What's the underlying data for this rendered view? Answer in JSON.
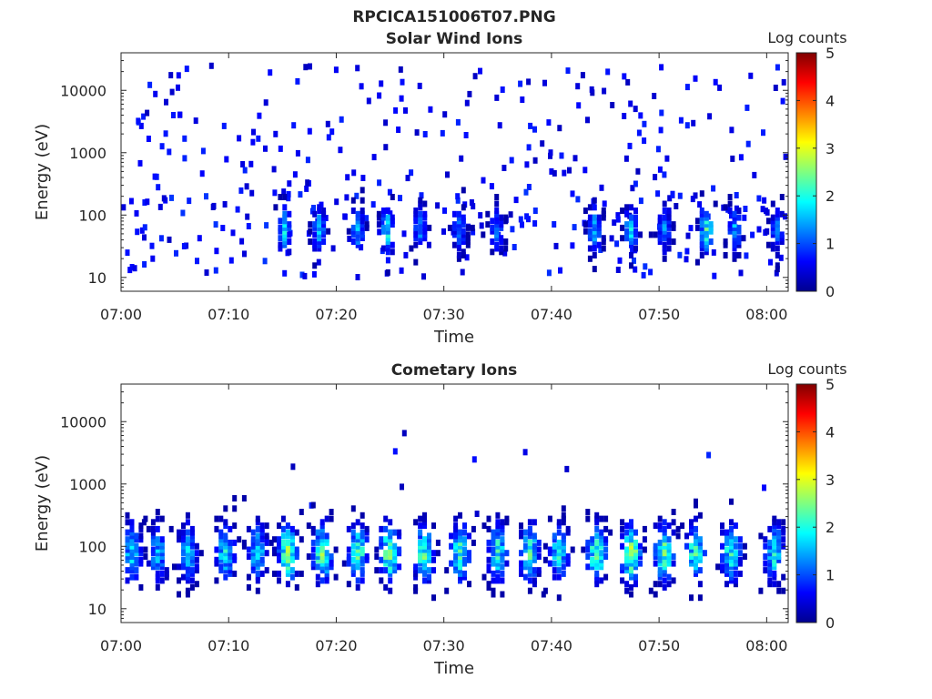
{
  "figure_title": "RPCICA151006T07.PNG",
  "chart_data": [
    {
      "type": "heatmap",
      "title": "Solar Wind Ions",
      "xlabel": "Time",
      "ylabel": "Energy (eV)",
      "xticks": [
        "07:00",
        "07:10",
        "07:20",
        "07:30",
        "07:40",
        "07:50",
        "08:00"
      ],
      "yticks": [
        "10",
        "100",
        "1000",
        "10000"
      ],
      "yscale": "log",
      "xlim": [
        "07:00",
        "08:02"
      ],
      "ylim": [
        6,
        40000
      ],
      "colorbar": {
        "label": "Log counts",
        "ticks": [
          "0",
          "1",
          "2",
          "3",
          "4",
          "5"
        ],
        "range": [
          0,
          5
        ],
        "colormap": "jet"
      },
      "background_hits": {
        "minute_range": [
          0,
          62
        ],
        "energy_range": [
          40,
          25000
        ],
        "level": 0.3,
        "count": 230,
        "seed": 11
      },
      "low_energy_hits": {
        "minute_range": [
          0,
          62
        ],
        "energy_range": [
          10,
          250
        ],
        "level": 0.4,
        "count": 160,
        "seed": 29
      },
      "bursts": [
        {
          "minute": 15.0,
          "peak": 1.8
        },
        {
          "minute": 18.2,
          "peak": 1.6
        },
        {
          "minute": 21.8,
          "peak": 1.6
        },
        {
          "minute": 24.6,
          "peak": 2.0
        },
        {
          "minute": 27.6,
          "peak": 1.5
        },
        {
          "minute": 31.2,
          "peak": 1.3
        },
        {
          "minute": 34.7,
          "peak": 1.3
        },
        {
          "minute": 43.8,
          "peak": 1.6
        },
        {
          "minute": 47.2,
          "peak": 1.8
        },
        {
          "minute": 50.3,
          "peak": 1.4
        },
        {
          "minute": 54.2,
          "peak": 2.2
        },
        {
          "minute": 56.8,
          "peak": 1.6
        },
        {
          "minute": 60.8,
          "peak": 1.3
        }
      ]
    },
    {
      "type": "heatmap",
      "title": "Cometary Ions",
      "xlabel": "Time",
      "ylabel": "Energy (eV)",
      "xticks": [
        "07:00",
        "07:10",
        "07:20",
        "07:30",
        "07:40",
        "07:50",
        "08:00"
      ],
      "yticks": [
        "10",
        "100",
        "1000",
        "10000"
      ],
      "yscale": "log",
      "xlim": [
        "07:00",
        "08:02"
      ],
      "ylim": [
        6,
        40000
      ],
      "colorbar": {
        "label": "Log counts",
        "ticks": [
          "0",
          "1",
          "2",
          "3",
          "4",
          "5"
        ],
        "range": [
          0,
          5
        ],
        "colormap": "jet"
      },
      "background_hits": {
        "minute_range": [
          0,
          62
        ],
        "energy_range": [
          300,
          9000
        ],
        "level": 0.3,
        "count": 12,
        "seed": 47
      },
      "bursts": [
        {
          "minute": 0.8,
          "peak": 1.9
        },
        {
          "minute": 3.2,
          "peak": 1.7
        },
        {
          "minute": 6.0,
          "peak": 1.8
        },
        {
          "minute": 9.5,
          "peak": 2.0
        },
        {
          "minute": 12.5,
          "peak": 1.9
        },
        {
          "minute": 15.3,
          "peak": 2.8
        },
        {
          "minute": 18.5,
          "peak": 2.7
        },
        {
          "minute": 21.8,
          "peak": 2.5
        },
        {
          "minute": 24.8,
          "peak": 2.8
        },
        {
          "minute": 28.0,
          "peak": 2.6
        },
        {
          "minute": 31.3,
          "peak": 2.4
        },
        {
          "minute": 34.8,
          "peak": 2.2
        },
        {
          "minute": 37.8,
          "peak": 2.3
        },
        {
          "minute": 40.5,
          "peak": 2.0
        },
        {
          "minute": 44.0,
          "peak": 2.6
        },
        {
          "minute": 47.2,
          "peak": 3.0
        },
        {
          "minute": 50.3,
          "peak": 2.6
        },
        {
          "minute": 53.2,
          "peak": 2.5
        },
        {
          "minute": 56.5,
          "peak": 2.3
        },
        {
          "minute": 60.5,
          "peak": 2.1
        }
      ]
    }
  ]
}
